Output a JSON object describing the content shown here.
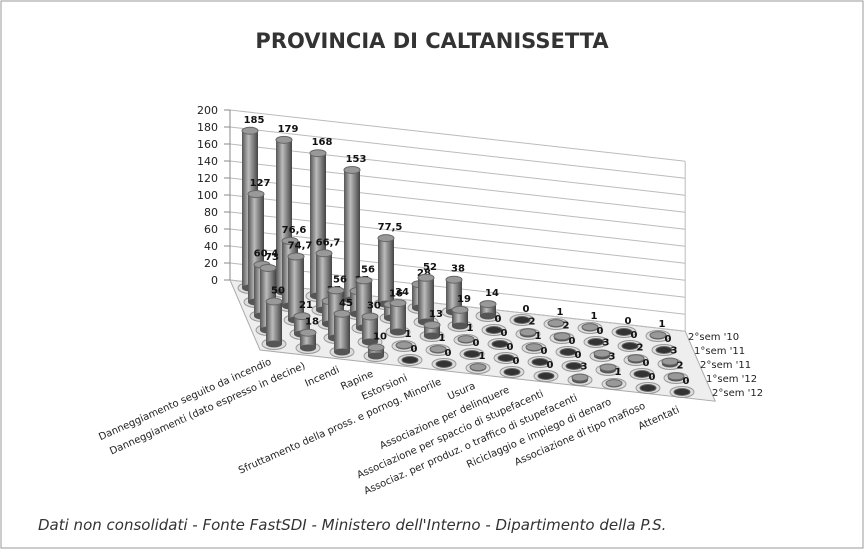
{
  "chart_data": {
    "type": "bar3d",
    "title": "PROVINCIA DI CALTANISSETTA",
    "note": "Dati non consolidati - Fonte FastSDI - Ministero dell'Interno - Dipartimento della P.S.",
    "categories": [
      "Danneggiamento seguito da incendio",
      "Danneggiamenti (dato espresso in decine)",
      "Incendi",
      "Rapine",
      "Estorsioni",
      "Sfruttamento della pross. e pornog. Minorile",
      "Usura",
      "Associazione per delinquere",
      "Associazione per spaccio di stupefacenti",
      "Associaz. per produz. o traffico di stupefacenti",
      "Riciclaggio e impiego di denaro",
      "Associazione di tipo mafioso",
      "Attentati"
    ],
    "series": [
      {
        "name": "2°sem '10",
        "color": "#8c8c8c",
        "values": [
          185,
          179,
          168,
          153,
          77.5,
          28,
          38,
          14,
          0,
          1,
          1,
          0,
          1
        ],
        "value_labels": [
          "185",
          "179",
          "168",
          "153",
          "77,5",
          "28",
          "38",
          "14",
          "0",
          "1",
          "1",
          "0",
          "1"
        ]
      },
      {
        "name": "1°sem '11",
        "color": "#8c8c8c",
        "values": [
          127,
          76.6,
          66.7,
          27,
          16,
          52,
          19,
          0,
          2,
          2,
          0,
          0,
          0
        ],
        "value_labels": [
          "127",
          "76,6",
          "66,7",
          "27",
          "16",
          "52",
          "19",
          "0",
          "2",
          "2",
          "0",
          "0",
          "0"
        ]
      },
      {
        "name": "2°sem '11",
        "color": "#8c8c8c",
        "values": [
          60.4,
          74.7,
          27,
          56,
          34,
          13,
          1,
          0,
          1,
          0,
          3,
          2,
          3
        ],
        "value_labels": [
          "60,4",
          "74,7",
          "27",
          "56",
          "34",
          "13",
          "1",
          "0",
          "1",
          "0",
          "3",
          "2",
          "3"
        ]
      },
      {
        "name": "1°sem '12",
        "color": "#8c8c8c",
        "values": [
          73,
          21,
          56,
          30,
          1,
          1,
          0,
          0,
          0,
          0,
          3,
          0,
          2
        ]
      },
      {
        "name": "2°sem '12",
        "color": "#8c8c8c",
        "values": [
          50,
          18,
          45,
          10,
          0,
          0,
          1,
          0,
          0,
          3,
          1,
          0,
          0
        ]
      }
    ],
    "ylim": [
      0,
      200
    ],
    "yticks": [
      0,
      20,
      40,
      60,
      80,
      100,
      120,
      140,
      160,
      180,
      200
    ],
    "grid": true
  }
}
